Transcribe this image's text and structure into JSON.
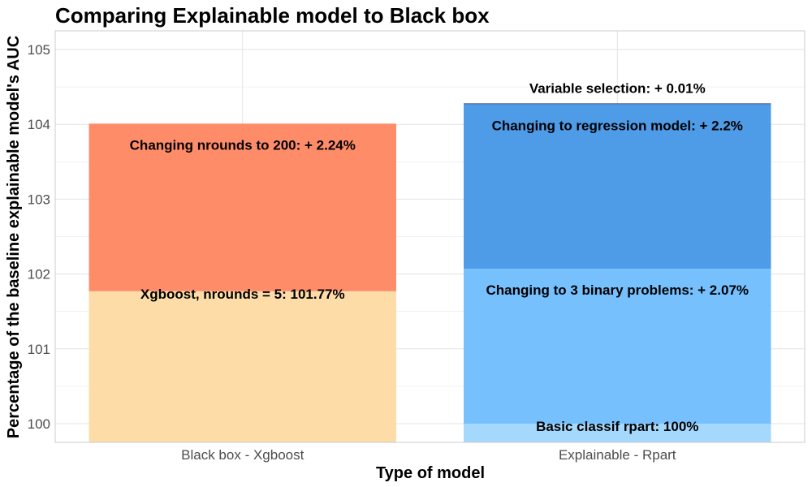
{
  "chart_data": {
    "type": "bar",
    "stacked": true,
    "title": "Comparing Explainable model to Black box",
    "xlabel": "Type of model",
    "ylabel": "Percentage of the baseline explainable model's AUC",
    "ylim": [
      99.75,
      105.25
    ],
    "yticks": [
      100,
      101,
      102,
      103,
      104,
      105
    ],
    "grid": true,
    "legend": "none",
    "categories": [
      "Black box - Xgboost",
      "Explainable - Rpart"
    ],
    "bars": [
      {
        "category": "Black box - Xgboost",
        "segments": [
          {
            "label": "Xgboost, nrounds = 5: 101.77%",
            "start": 0,
            "end": 101.77,
            "color": "#fddca7"
          },
          {
            "label": "Changing nrounds to 200: + 2.24%",
            "start": 101.77,
            "end": 104.01,
            "color": "#ff8c69"
          }
        ]
      },
      {
        "category": "Explainable - Rpart",
        "segments": [
          {
            "label": "Basic classif rpart: 100%",
            "start": 0,
            "end": 100,
            "color": "#a4d8fc"
          },
          {
            "label": "Changing to 3 binary problems: + 2.07%",
            "start": 100,
            "end": 102.07,
            "color": "#76c0fd"
          },
          {
            "label": "Changing to regression model: + 2.2%",
            "start": 102.07,
            "end": 104.27,
            "color": "#4e9be8"
          },
          {
            "label": "Variable selection: + 0.01%",
            "start": 104.27,
            "end": 104.28,
            "color": "#1e3a7a"
          }
        ]
      }
    ]
  }
}
